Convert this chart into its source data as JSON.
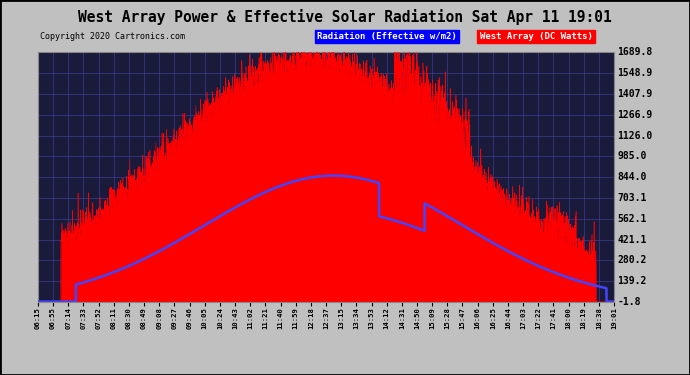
{
  "title": "West Array Power & Effective Solar Radiation Sat Apr 11 19:01",
  "copyright": "Copyright 2020 Cartronics.com",
  "legend_blue": "Radiation (Effective w/m2)",
  "legend_red": "West Array (DC Watts)",
  "ymin": -1.8,
  "ymax": 1689.8,
  "yticks": [
    -1.8,
    139.2,
    280.2,
    421.1,
    562.1,
    703.1,
    844.0,
    985.0,
    1126.0,
    1266.9,
    1407.9,
    1548.9,
    1689.8
  ],
  "bg_color": "#c0c0c0",
  "plot_bg_color": "#1a1a3a",
  "title_color": "#000000",
  "grid_color": "#4444aa",
  "red_color": "#ff0000",
  "blue_color": "#4444ff",
  "xtick_labels": [
    "06:15",
    "06:55",
    "07:14",
    "07:33",
    "07:52",
    "08:11",
    "08:30",
    "08:49",
    "09:08",
    "09:27",
    "09:46",
    "10:05",
    "10:24",
    "10:43",
    "11:02",
    "11:21",
    "11:40",
    "11:59",
    "12:18",
    "12:37",
    "13:15",
    "13:34",
    "13:53",
    "14:12",
    "14:31",
    "14:50",
    "15:09",
    "15:28",
    "15:47",
    "16:06",
    "16:25",
    "16:44",
    "17:03",
    "17:22",
    "17:41",
    "18:00",
    "18:19",
    "18:38",
    "19:01"
  ]
}
